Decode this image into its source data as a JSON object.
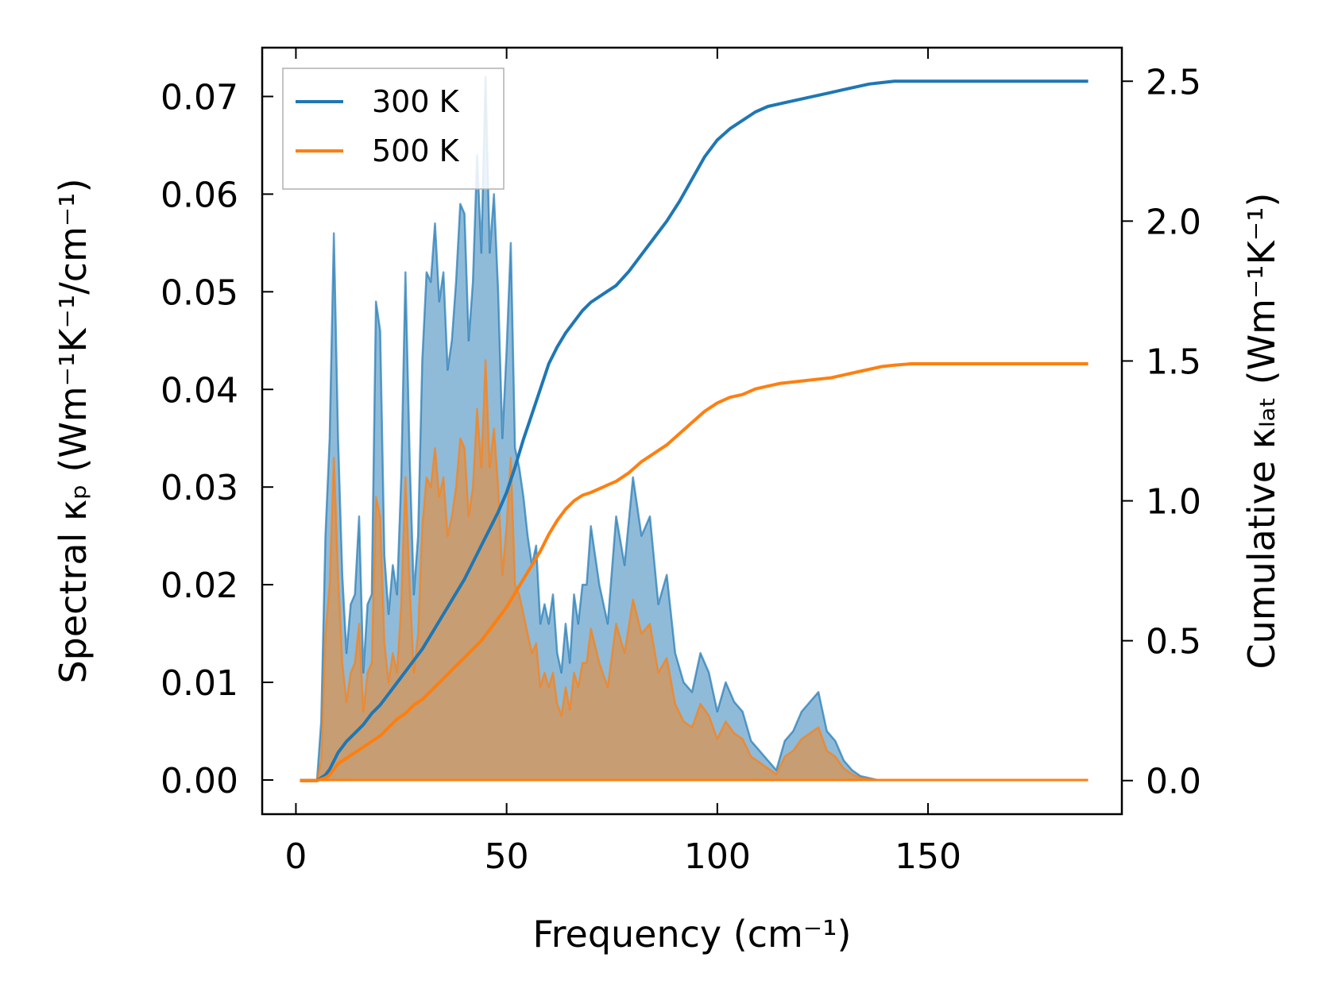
{
  "chart_data": {
    "type": "area+line",
    "xlabel": "Frequency (cm⁻¹)",
    "ylabel_left": "Spectral κₚ (Wm⁻¹K⁻¹/cm⁻¹)",
    "ylabel_right": "Cumulative κₗₐₜ (Wm⁻¹K⁻¹)",
    "xlim": [
      -8,
      196
    ],
    "ylim_left": [
      -0.0035,
      0.075
    ],
    "ylim_right": [
      -0.12,
      2.62
    ],
    "xticks": [
      0,
      50,
      100,
      150
    ],
    "yticks_left": [
      0.0,
      0.01,
      0.02,
      0.03,
      0.04,
      0.05,
      0.06,
      0.07
    ],
    "ytick_labels_left": [
      "0.00",
      "0.01",
      "0.02",
      "0.03",
      "0.04",
      "0.05",
      "0.06",
      "0.07"
    ],
    "yticks_right": [
      0.0,
      0.5,
      1.0,
      1.5,
      2.0,
      2.5
    ],
    "ytick_labels_right": [
      "0.0",
      "0.5",
      "1.0",
      "1.5",
      "2.0",
      "2.5"
    ],
    "legend": {
      "placement": "top-left",
      "entries": [
        "300 K",
        "500 K"
      ]
    },
    "colors": {
      "300K": "#1f77b4",
      "500K": "#ff7f0e"
    },
    "spectral": {
      "x": [
        1,
        3,
        5,
        6,
        7,
        8,
        9,
        10,
        11,
        12,
        13,
        14,
        15,
        16,
        17,
        18,
        19,
        20,
        21,
        22,
        23,
        24,
        25,
        26,
        27,
        28,
        29,
        30,
        31,
        32,
        33,
        34,
        35,
        36,
        37,
        38,
        39,
        40,
        41,
        42,
        43,
        44,
        45,
        46,
        47,
        48,
        49,
        50,
        51,
        52,
        53,
        54,
        55,
        56,
        57,
        58,
        59,
        60,
        61,
        62,
        63,
        64,
        65,
        66,
        67,
        68,
        69,
        70,
        72,
        74,
        76,
        78,
        80,
        82,
        84,
        86,
        88,
        90,
        92,
        94,
        96,
        98,
        100,
        102,
        104,
        106,
        108,
        110,
        112,
        114,
        116,
        118,
        120,
        122,
        124,
        126,
        128,
        130,
        132,
        134,
        136,
        138,
        140,
        142,
        145,
        150,
        155,
        160,
        170,
        188
      ],
      "series": [
        {
          "name": "300 K",
          "values": [
            0.0,
            0.0,
            0.0,
            0.006,
            0.025,
            0.035,
            0.056,
            0.035,
            0.021,
            0.013,
            0.018,
            0.019,
            0.027,
            0.011,
            0.018,
            0.019,
            0.049,
            0.046,
            0.023,
            0.017,
            0.022,
            0.019,
            0.031,
            0.052,
            0.033,
            0.019,
            0.025,
            0.043,
            0.052,
            0.051,
            0.057,
            0.049,
            0.052,
            0.042,
            0.045,
            0.051,
            0.059,
            0.058,
            0.045,
            0.051,
            0.064,
            0.054,
            0.072,
            0.054,
            0.06,
            0.05,
            0.035,
            0.044,
            0.055,
            0.034,
            0.032,
            0.029,
            0.025,
            0.022,
            0.024,
            0.016,
            0.018,
            0.016,
            0.019,
            0.013,
            0.011,
            0.016,
            0.012,
            0.019,
            0.016,
            0.02,
            0.02,
            0.026,
            0.02,
            0.016,
            0.027,
            0.022,
            0.031,
            0.025,
            0.027,
            0.018,
            0.021,
            0.013,
            0.01,
            0.009,
            0.013,
            0.011,
            0.007,
            0.01,
            0.008,
            0.007,
            0.004,
            0.003,
            0.002,
            0.001,
            0.004,
            0.005,
            0.007,
            0.008,
            0.009,
            0.005,
            0.004,
            0.002,
            0.001,
            0.0004,
            0.0002,
            0.0,
            0.0,
            0.0
          ]
        },
        {
          "name": "500 K",
          "values": [
            0.0,
            0.0,
            0.0,
            0.002,
            0.015,
            0.02,
            0.033,
            0.021,
            0.012,
            0.008,
            0.011,
            0.012,
            0.016,
            0.007,
            0.011,
            0.012,
            0.029,
            0.027,
            0.014,
            0.01,
            0.013,
            0.011,
            0.018,
            0.031,
            0.02,
            0.011,
            0.015,
            0.026,
            0.031,
            0.03,
            0.034,
            0.029,
            0.031,
            0.025,
            0.027,
            0.03,
            0.035,
            0.034,
            0.027,
            0.03,
            0.038,
            0.032,
            0.043,
            0.032,
            0.036,
            0.03,
            0.021,
            0.026,
            0.033,
            0.02,
            0.019,
            0.017,
            0.015,
            0.013,
            0.014,
            0.0095,
            0.011,
            0.0095,
            0.011,
            0.0078,
            0.0066,
            0.0095,
            0.0072,
            0.011,
            0.0095,
            0.012,
            0.012,
            0.0155,
            0.012,
            0.0095,
            0.016,
            0.013,
            0.0185,
            0.015,
            0.016,
            0.011,
            0.0125,
            0.0078,
            0.006,
            0.0054,
            0.0078,
            0.0066,
            0.0042,
            0.006,
            0.0048,
            0.0042,
            0.0024,
            0.0018,
            0.0012,
            0.0006,
            0.0024,
            0.003,
            0.0042,
            0.0048,
            0.0054,
            0.003,
            0.0024,
            0.0012,
            0.0006,
            0.0002,
            0.0001,
            0.0,
            0.0,
            0.0
          ]
        }
      ]
    },
    "cumulative": {
      "x": [
        1,
        5,
        6,
        7,
        8,
        9,
        10,
        12,
        14,
        16,
        18,
        20,
        22,
        24,
        26,
        28,
        30,
        32,
        34,
        36,
        38,
        40,
        42,
        44,
        46,
        48,
        50,
        52,
        54,
        56,
        58,
        60,
        62,
        64,
        66,
        68,
        70,
        73,
        76,
        79,
        82,
        85,
        88,
        91,
        94,
        97,
        100,
        103,
        106,
        109,
        112,
        115,
        118,
        121,
        124,
        127,
        130,
        133,
        136,
        139,
        142,
        146,
        150,
        160,
        188
      ],
      "series": [
        {
          "name": "300 K",
          "values": [
            0.0,
            0.0,
            0.01,
            0.02,
            0.04,
            0.07,
            0.1,
            0.14,
            0.17,
            0.2,
            0.24,
            0.27,
            0.31,
            0.35,
            0.39,
            0.43,
            0.47,
            0.52,
            0.57,
            0.62,
            0.67,
            0.72,
            0.78,
            0.84,
            0.9,
            0.96,
            1.03,
            1.12,
            1.22,
            1.31,
            1.4,
            1.49,
            1.55,
            1.6,
            1.64,
            1.68,
            1.71,
            1.74,
            1.77,
            1.82,
            1.88,
            1.94,
            2.0,
            2.07,
            2.15,
            2.23,
            2.29,
            2.33,
            2.36,
            2.39,
            2.41,
            2.42,
            2.43,
            2.44,
            2.45,
            2.46,
            2.47,
            2.48,
            2.49,
            2.495,
            2.5,
            2.5,
            2.5,
            2.5,
            2.5
          ]
        },
        {
          "name": "500 K",
          "values": [
            0.0,
            0.0,
            0.005,
            0.01,
            0.02,
            0.04,
            0.06,
            0.08,
            0.1,
            0.12,
            0.14,
            0.16,
            0.19,
            0.22,
            0.24,
            0.27,
            0.29,
            0.32,
            0.35,
            0.38,
            0.41,
            0.44,
            0.47,
            0.5,
            0.54,
            0.58,
            0.62,
            0.67,
            0.72,
            0.77,
            0.82,
            0.88,
            0.93,
            0.97,
            1.0,
            1.02,
            1.03,
            1.05,
            1.07,
            1.1,
            1.14,
            1.17,
            1.2,
            1.24,
            1.28,
            1.32,
            1.35,
            1.37,
            1.38,
            1.4,
            1.41,
            1.42,
            1.425,
            1.43,
            1.435,
            1.44,
            1.45,
            1.46,
            1.47,
            1.48,
            1.485,
            1.49,
            1.49,
            1.49,
            1.49
          ]
        }
      ]
    }
  }
}
